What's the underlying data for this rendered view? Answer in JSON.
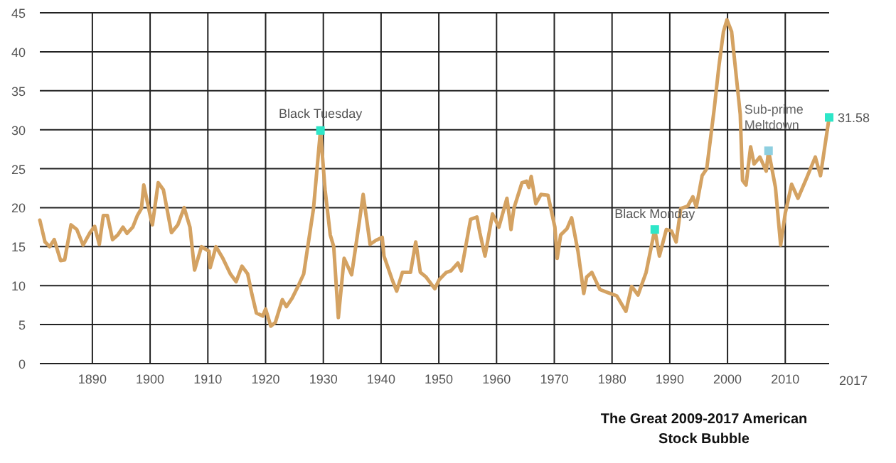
{
  "chart_data": {
    "type": "line",
    "title": "The Great 2009-2017 American Stock Bubble",
    "xlim": [
      1880.9,
      2017.6
    ],
    "ylim": [
      0,
      45
    ],
    "xticks": [
      1890,
      1900,
      1910,
      1920,
      1930,
      1940,
      1950,
      1960,
      1970,
      1980,
      1990,
      2000,
      2010
    ],
    "yticks": [
      0,
      5,
      10,
      15,
      20,
      25,
      30,
      35,
      40,
      45
    ],
    "grid": true,
    "marker": "none",
    "line_style": "solid",
    "series": [
      {
        "color": "#d4a262",
        "x": [
          1880.9,
          1881.8,
          1882.6,
          1883.4,
          1884.5,
          1885.2,
          1886.3,
          1887.3,
          1888.4,
          1889.6,
          1890.4,
          1891.2,
          1891.9,
          1892.6,
          1893.5,
          1894.4,
          1895.3,
          1896.0,
          1897.0,
          1897.8,
          1898.5,
          1898.9,
          1900.1,
          1900.4,
          1901.4,
          1902.3,
          1903.7,
          1904.8,
          1905.9,
          1906.9,
          1907.7,
          1908.9,
          1910.2,
          1910.4,
          1911.4,
          1912.6,
          1913.9,
          1914.9,
          1915.9,
          1916.9,
          1917.6,
          1918.4,
          1919.5,
          1920.0,
          1920.9,
          1921.7,
          1922.9,
          1923.6,
          1924.6,
          1925.8,
          1926.6,
          1927.0,
          1928.3,
          1929.5,
          1930.3,
          1931.2,
          1931.8,
          1932.6,
          1933.6,
          1934.9,
          1936.1,
          1936.9,
          1938.1,
          1939.1,
          1940.2,
          1940.5,
          1941.9,
          1942.7,
          1943.7,
          1945.1,
          1946.0,
          1946.8,
          1947.8,
          1949.3,
          1950.1,
          1951.3,
          1952.1,
          1953.3,
          1953.9,
          1955.5,
          1956.6,
          1957.1,
          1958.0,
          1959.3,
          1960.4,
          1961.8,
          1962.5,
          1963.0,
          1964.4,
          1965.2,
          1965.6,
          1966.0,
          1966.8,
          1967.7,
          1968.9,
          1970.1,
          1970.5,
          1971.1,
          1972.2,
          1973.0,
          1974.1,
          1975.1,
          1975.6,
          1976.5,
          1977.9,
          1979.3,
          1980.8,
          1982.4,
          1983.4,
          1984.5,
          1985.9,
          1987.4,
          1988.2,
          1989.4,
          1990.3,
          1991.1,
          1991.9,
          1993.1,
          1994.0,
          1994.6,
          1995.6,
          1996.4,
          1997.7,
          1998.5,
          1999.3,
          1999.9,
          2000.7,
          2002.2,
          2002.6,
          2003.2,
          2004.0,
          2004.6,
          2005.6,
          2006.7,
          2007.1,
          2008.3,
          2009.2,
          2010.0,
          2011.1,
          2012.2,
          2013.7,
          2015.2,
          2016.1,
          2017.6
        ],
        "values": [
          18.4,
          15.6,
          15.0,
          15.9,
          13.2,
          13.3,
          17.8,
          17.2,
          15.2,
          16.8,
          17.6,
          15.3,
          19.0,
          19.0,
          15.9,
          16.5,
          17.5,
          16.7,
          17.5,
          19.0,
          19.9,
          22.9,
          18.7,
          17.8,
          23.2,
          22.3,
          16.8,
          17.8,
          20.0,
          17.5,
          12.0,
          15.0,
          14.4,
          12.3,
          15.0,
          13.5,
          11.5,
          10.5,
          12.5,
          11.5,
          9.0,
          6.5,
          6.1,
          7.0,
          4.8,
          5.3,
          8.2,
          7.3,
          8.4,
          10.2,
          11.5,
          13.5,
          19.9,
          29.9,
          22.3,
          16.5,
          15.0,
          5.9,
          13.5,
          11.4,
          17.5,
          21.7,
          15.3,
          15.8,
          16.2,
          13.8,
          10.8,
          9.3,
          11.7,
          11.7,
          15.6,
          11.7,
          11.1,
          9.6,
          10.8,
          11.7,
          11.9,
          12.9,
          11.9,
          18.5,
          18.8,
          16.8,
          13.8,
          19.2,
          17.5,
          21.2,
          17.2,
          19.9,
          23.2,
          23.4,
          22.6,
          24.0,
          20.5,
          21.7,
          21.6,
          17.5,
          13.5,
          16.5,
          17.3,
          18.7,
          14.4,
          9.0,
          11.1,
          11.7,
          9.5,
          9.1,
          8.7,
          6.7,
          9.9,
          8.8,
          11.7,
          17.2,
          13.8,
          17.2,
          17.0,
          15.6,
          19.9,
          20.2,
          21.4,
          20.1,
          24.1,
          25.0,
          32.7,
          38.1,
          42.6,
          44.1,
          42.6,
          32.0,
          23.5,
          22.9,
          27.8,
          25.6,
          26.5,
          24.7,
          27.3,
          22.6,
          15.2,
          19.3,
          23.0,
          21.2,
          23.8,
          26.5,
          24.1,
          31.58
        ]
      },
      {
        "type": "scatter",
        "marker": "square",
        "x": [
          1929.5,
          1987.4,
          2007.1,
          2017.6
        ],
        "values": [
          29.9,
          17.2,
          27.3,
          31.58
        ],
        "colors": [
          "#2ee6c8",
          "#2ee6c8",
          "#8ecfe0",
          "#2ee6c8"
        ]
      }
    ],
    "annotations": [
      {
        "text": "Black Tuesday",
        "x": 1929.5,
        "y": 29.9
      },
      {
        "text": "Black Monday",
        "x": 1987.4,
        "y": 17.2
      },
      {
        "text": "Sub-prime Meltdown",
        "x": 2007.1,
        "y": 27.3
      },
      {
        "text": "31.58",
        "x": 2017.6,
        "y": 31.58
      },
      "2017"
    ]
  }
}
